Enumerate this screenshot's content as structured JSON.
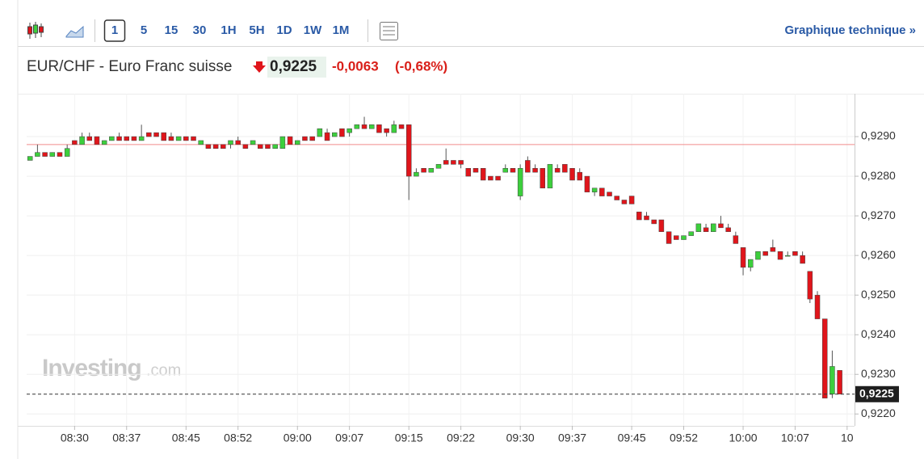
{
  "toolbar": {
    "intervals": [
      "1",
      "5",
      "15",
      "30",
      "1H",
      "5H",
      "1D",
      "1W",
      "1M"
    ],
    "selected": "1",
    "link": "Graphique technique »"
  },
  "header": {
    "symbol": "EUR/CHF - Euro Franc suisse",
    "price": "0,9225",
    "change": "-0,0063",
    "change_percent": "(-0,68%)"
  },
  "watermark": {
    "brand": "Investing",
    "suffix": ".com"
  },
  "chart_data": {
    "type": "candlestick",
    "x": [
      "08:24",
      "08:25",
      "08:26",
      "08:27",
      "08:28",
      "08:29",
      "08:30",
      "08:31",
      "08:32",
      "08:33",
      "08:34",
      "08:35",
      "08:36",
      "08:37",
      "08:38",
      "08:39",
      "08:40",
      "08:41",
      "08:42",
      "08:43",
      "08:44",
      "08:45",
      "08:46",
      "08:47",
      "08:48",
      "08:49",
      "08:50",
      "08:51",
      "08:52",
      "08:53",
      "08:54",
      "08:55",
      "08:56",
      "08:57",
      "08:58",
      "08:59",
      "09:00",
      "09:01",
      "09:02",
      "09:03",
      "09:04",
      "09:05",
      "09:06",
      "09:07",
      "09:08",
      "09:09",
      "09:10",
      "09:11",
      "09:12",
      "09:13",
      "09:14",
      "09:15",
      "09:16",
      "09:17",
      "09:18",
      "09:19",
      "09:20",
      "09:21",
      "09:22",
      "09:23",
      "09:24",
      "09:25",
      "09:26",
      "09:27",
      "09:28",
      "09:29",
      "09:30",
      "09:31",
      "09:32",
      "09:33",
      "09:34",
      "09:35",
      "09:36",
      "09:37",
      "09:38",
      "09:39",
      "09:40",
      "09:41",
      "09:42",
      "09:43",
      "09:44",
      "09:45",
      "09:46",
      "09:47",
      "09:48",
      "09:49",
      "09:50",
      "09:51",
      "09:52",
      "09:53",
      "09:54",
      "09:55",
      "09:56",
      "09:57",
      "09:58",
      "09:59",
      "10:00",
      "10:01",
      "10:02",
      "10:03",
      "10:04",
      "10:05",
      "10:06",
      "10:07",
      "10:08",
      "10:09",
      "10:10",
      "10:11",
      "10:12",
      "10:13"
    ],
    "open": [
      0.9284,
      0.9285,
      0.9286,
      0.9285,
      0.9286,
      0.9285,
      0.9289,
      0.9288,
      0.929,
      0.929,
      0.9288,
      0.9289,
      0.929,
      0.929,
      0.929,
      0.9289,
      0.9291,
      0.9291,
      0.9291,
      0.929,
      0.9289,
      0.929,
      0.929,
      0.9288,
      0.9288,
      0.9288,
      0.9288,
      0.9288,
      0.9289,
      0.9288,
      0.9288,
      0.9288,
      0.9288,
      0.9287,
      0.9287,
      0.929,
      0.9288,
      0.929,
      0.929,
      0.929,
      0.9291,
      0.929,
      0.9292,
      0.9291,
      0.9292,
      0.9293,
      0.9292,
      0.9293,
      0.9292,
      0.9291,
      0.9293,
      0.9293,
      0.928,
      0.9282,
      0.9281,
      0.9282,
      0.9284,
      0.9284,
      0.9284,
      0.9282,
      0.9282,
      0.9282,
      0.928,
      0.928,
      0.9281,
      0.9282,
      0.9275,
      0.9284,
      0.9282,
      0.9282,
      0.9277,
      0.9282,
      0.9283,
      0.9282,
      0.9281,
      0.928,
      0.9276,
      0.9277,
      0.9276,
      0.9275,
      0.9274,
      0.9275,
      0.9271,
      0.927,
      0.9269,
      0.9269,
      0.9266,
      0.9265,
      0.9264,
      0.9265,
      0.9266,
      0.9267,
      0.9266,
      0.9268,
      0.9267,
      0.9265,
      0.9262,
      0.9257,
      0.9259,
      0.9261,
      0.9262,
      0.9261,
      0.926,
      0.9261,
      0.926,
      0.9256,
      0.925,
      0.9244,
      0.9225,
      0.9231
    ],
    "high": [
      0.9285,
      0.9288,
      0.9286,
      0.9286,
      0.9286,
      0.9288,
      0.9289,
      0.9291,
      0.9291,
      0.929,
      0.9289,
      0.929,
      0.9291,
      0.929,
      0.929,
      0.9293,
      0.9291,
      0.9291,
      0.9291,
      0.9291,
      0.929,
      0.929,
      0.929,
      0.9289,
      0.9288,
      0.9288,
      0.9288,
      0.9289,
      0.929,
      0.9288,
      0.9289,
      0.9288,
      0.9288,
      0.9288,
      0.929,
      0.929,
      0.9289,
      0.929,
      0.929,
      0.9292,
      0.9292,
      0.9291,
      0.9292,
      0.9292,
      0.9293,
      0.9295,
      0.9293,
      0.9293,
      0.9292,
      0.9294,
      0.9293,
      0.9293,
      0.9282,
      0.9282,
      0.9282,
      0.9283,
      0.9287,
      0.9284,
      0.9284,
      0.9282,
      0.9282,
      0.9282,
      0.928,
      0.928,
      0.9283,
      0.9282,
      0.9283,
      0.9285,
      0.9283,
      0.9282,
      0.9283,
      0.9283,
      0.9283,
      0.9282,
      0.9282,
      0.928,
      0.9277,
      0.9277,
      0.9276,
      0.9275,
      0.9274,
      0.9275,
      0.9271,
      0.9271,
      0.9269,
      0.9269,
      0.9266,
      0.9265,
      0.9265,
      0.9266,
      0.9268,
      0.9268,
      0.9268,
      0.927,
      0.9268,
      0.9266,
      0.9262,
      0.9259,
      0.9261,
      0.9261,
      0.9264,
      0.9261,
      0.9261,
      0.9261,
      0.9261,
      0.9256,
      0.9251,
      0.9244,
      0.9236,
      0.9231
    ],
    "low": [
      0.9284,
      0.9285,
      0.9285,
      0.9285,
      0.9285,
      0.9285,
      0.9288,
      0.9288,
      0.9289,
      0.9288,
      0.9288,
      0.9289,
      0.9289,
      0.9289,
      0.9289,
      0.9289,
      0.929,
      0.929,
      0.9289,
      0.9289,
      0.9289,
      0.9289,
      0.9289,
      0.9288,
      0.9287,
      0.9287,
      0.9287,
      0.9287,
      0.9288,
      0.9287,
      0.9288,
      0.9287,
      0.9287,
      0.9287,
      0.9287,
      0.9288,
      0.9288,
      0.9289,
      0.9289,
      0.929,
      0.9289,
      0.929,
      0.929,
      0.929,
      0.9292,
      0.9292,
      0.9292,
      0.9291,
      0.929,
      0.9291,
      0.9292,
      0.9274,
      0.928,
      0.9281,
      0.9281,
      0.9282,
      0.9283,
      0.9283,
      0.9282,
      0.928,
      0.9281,
      0.9279,
      0.9279,
      0.9279,
      0.9281,
      0.9281,
      0.9274,
      0.9281,
      0.9281,
      0.9277,
      0.9277,
      0.9281,
      0.9281,
      0.9279,
      0.9279,
      0.9276,
      0.9275,
      0.9275,
      0.9275,
      0.9274,
      0.9273,
      0.9273,
      0.9269,
      0.9269,
      0.9268,
      0.9266,
      0.9263,
      0.9264,
      0.9264,
      0.9265,
      0.9266,
      0.9266,
      0.9266,
      0.9267,
      0.9266,
      0.9263,
      0.9255,
      0.9256,
      0.9259,
      0.926,
      0.9261,
      0.9259,
      0.926,
      0.926,
      0.9258,
      0.9248,
      0.9244,
      0.9224,
      0.9224,
      0.9225
    ],
    "close": [
      0.9285,
      0.9286,
      0.9285,
      0.9286,
      0.9285,
      0.9287,
      0.9288,
      0.929,
      0.9289,
      0.9288,
      0.9289,
      0.929,
      0.9289,
      0.9289,
      0.9289,
      0.929,
      0.929,
      0.929,
      0.9289,
      0.9289,
      0.929,
      0.9289,
      0.9289,
      0.9289,
      0.9287,
      0.9287,
      0.9287,
      0.9289,
      0.9288,
      0.9287,
      0.9289,
      0.9287,
      0.9287,
      0.9288,
      0.929,
      0.9288,
      0.9289,
      0.9289,
      0.9289,
      0.9292,
      0.9289,
      0.9291,
      0.929,
      0.9292,
      0.9293,
      0.9292,
      0.9293,
      0.9291,
      0.9291,
      0.9293,
      0.9292,
      0.928,
      0.9281,
      0.9281,
      0.9282,
      0.9283,
      0.9283,
      0.9283,
      0.9283,
      0.928,
      0.9281,
      0.9279,
      0.9279,
      0.9279,
      0.9282,
      0.9281,
      0.9282,
      0.9281,
      0.9281,
      0.9277,
      0.9283,
      0.9281,
      0.9281,
      0.9279,
      0.9279,
      0.9276,
      0.9277,
      0.9275,
      0.9275,
      0.9274,
      0.9273,
      0.9273,
      0.9269,
      0.9269,
      0.9268,
      0.9266,
      0.9263,
      0.9264,
      0.9265,
      0.9266,
      0.9268,
      0.9266,
      0.9268,
      0.9267,
      0.9266,
      0.9263,
      0.9257,
      0.9259,
      0.9261,
      0.926,
      0.9261,
      0.9259,
      0.926,
      0.926,
      0.9258,
      0.9249,
      0.9244,
      0.9224,
      0.9232,
      0.9225
    ],
    "up_color": "#3ccf3c",
    "down_color": "#e0151b",
    "xlim": [
      "08:23",
      "10:15"
    ],
    "xticks": [
      "08:30",
      "08:37",
      "08:45",
      "08:52",
      "09:00",
      "09:07",
      "09:15",
      "09:22",
      "09:30",
      "09:37",
      "09:45",
      "09:52",
      "10:00",
      "10:07",
      {
        "value": "10:14",
        "label": "10"
      }
    ],
    "ylim": [
      0.9217,
      0.93
    ],
    "yticks": [
      {
        "value": 0.922,
        "label": "0,9220"
      },
      {
        "value": 0.923,
        "label": "0,9230"
      },
      {
        "value": 0.924,
        "label": "0,9240"
      },
      {
        "value": 0.925,
        "label": "0,9250"
      },
      {
        "value": 0.926,
        "label": "0,9260"
      },
      {
        "value": 0.927,
        "label": "0,9270"
      },
      {
        "value": 0.928,
        "label": "0,9280"
      },
      {
        "value": 0.929,
        "label": "0,9290"
      }
    ],
    "grid": true,
    "reference_line": 0.9288,
    "reference_color": "#f08c8c",
    "last_price": {
      "value": 0.9225,
      "label": "0,9225"
    }
  }
}
